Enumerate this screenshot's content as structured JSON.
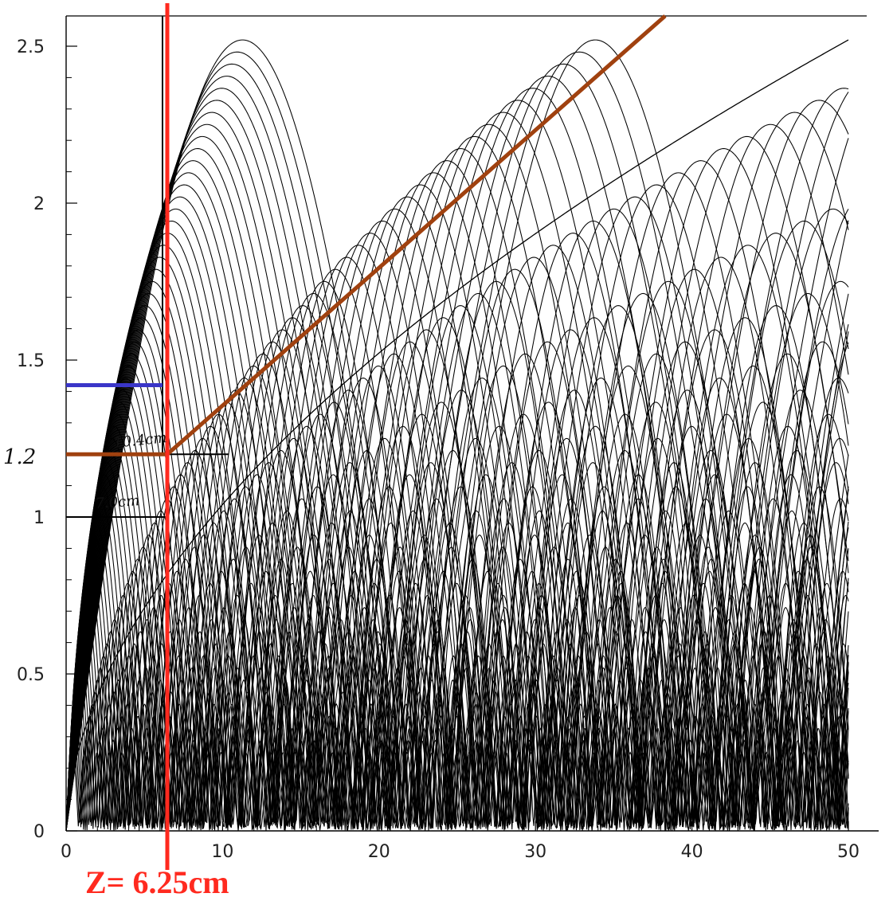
{
  "chart_data": {
    "type": "line",
    "title": "",
    "xlabel": "",
    "ylabel": "",
    "xlim": [
      0,
      50
    ],
    "ylim": [
      0,
      2.6
    ],
    "x_ticks": [
      "0",
      "10",
      "20",
      "30",
      "40",
      "50"
    ],
    "y_ticks": [
      "0",
      "0.5",
      "1",
      "1.5",
      "2",
      "2.5"
    ],
    "grid": false,
    "annotations": {
      "y_marker_label": "1.2",
      "upper_box_label": "10.4cm",
      "lower_box_label": "7.0cm",
      "z_label": "Z= 6.25cm"
    },
    "overlays": {
      "z_cut": {
        "x": 6.25,
        "color": "#ff2a1f"
      },
      "blue_level": {
        "y": 1.42,
        "x_start": 0,
        "x_end": 6.25,
        "color": "#3a36c8"
      },
      "brown_envelope": {
        "points": [
          [
            0,
            1.2
          ],
          [
            6.25,
            1.2
          ],
          [
            38.5,
            2.6
          ]
        ],
        "color": "#a0410f"
      },
      "black_box": {
        "x": 6.25,
        "y_top": 2.6,
        "y_upper": 1.2,
        "y_lower": 1.0,
        "x_upper_end": 10.4,
        "x_lower_end": 6.25
      }
    },
    "trajectory_families": [
      {
        "name": "",
        "description_free": true,
        "count": 60,
        "r_min": 0.25,
        "r_max": 2.52,
        "wavelength_scale": 3.3
      }
    ]
  },
  "colors": {
    "curve": "#000000",
    "axis": "#000000",
    "z_line": "#ff2a1f",
    "blue_line": "#3a36c8",
    "brown_line": "#a0410f"
  }
}
